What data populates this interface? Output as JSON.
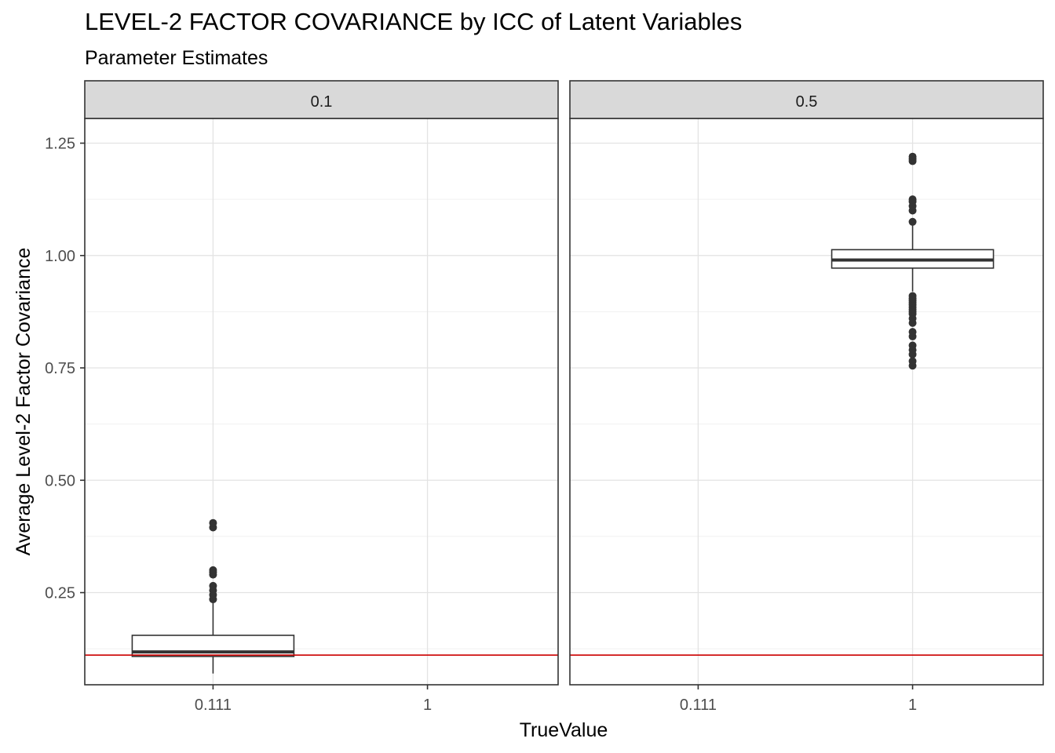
{
  "chart_data": {
    "type": "box",
    "title": "LEVEL-2 FACTOR COVARIANCE by ICC of Latent Variables",
    "subtitle": "Parameter Estimates",
    "xlabel": "TrueValue",
    "ylabel": "Average Level-2 Factor Covariance",
    "categories": [
      "0.111",
      "1"
    ],
    "y_ticks": [
      "0.25",
      "0.50",
      "0.75",
      "1.00",
      "1.25"
    ],
    "y_tick_values": [
      0.25,
      0.5,
      0.75,
      1.0,
      1.25
    ],
    "ylim": [
      0.045,
      1.305
    ],
    "reference_line": {
      "value": 0.111,
      "color": "#cc0000"
    },
    "grid": true,
    "facets": [
      {
        "label": "0.1",
        "boxes": [
          {
            "category": "0.111",
            "q1": 0.108,
            "median": 0.118,
            "q3": 0.155,
            "whisker_low": 0.07,
            "whisker_high": 0.23,
            "outliers": [
              0.235,
              0.245,
              0.255,
              0.265,
              0.29,
              0.295,
              0.3,
              0.395,
              0.405
            ]
          }
        ]
      },
      {
        "label": "0.5",
        "boxes": [
          {
            "category": "1",
            "q1": 0.972,
            "median": 0.99,
            "q3": 1.013,
            "whisker_low": 0.92,
            "whisker_high": 1.07,
            "outliers": [
              0.755,
              0.765,
              0.78,
              0.79,
              0.8,
              0.82,
              0.83,
              0.85,
              0.86,
              0.87,
              0.875,
              0.88,
              0.885,
              0.89,
              0.895,
              0.9,
              0.905,
              0.91,
              1.075,
              1.1,
              1.11,
              1.12,
              1.125,
              1.21,
              1.215,
              1.22
            ]
          }
        ]
      }
    ]
  }
}
